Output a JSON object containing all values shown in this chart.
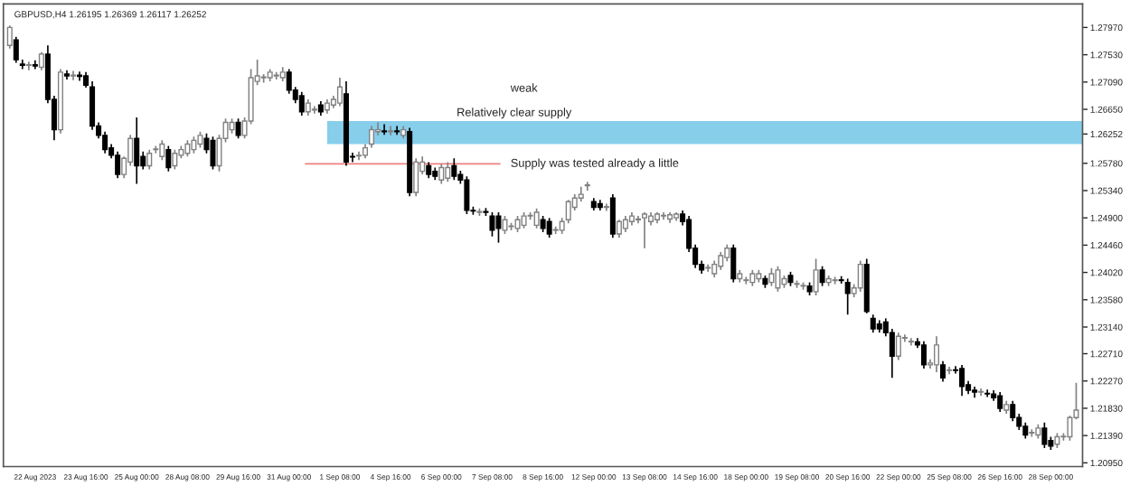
{
  "chart_data": {
    "type": "candlestick",
    "title": "GBPUSD,H4 1.26195 1.26369 1.26117 1.26252",
    "categories": [
      null,
      null,
      null,
      null,
      "22 Aug 2023",
      null,
      null,
      null,
      null,
      null,
      null,
      null,
      "23 Aug 16:00",
      null,
      null,
      null,
      null,
      null,
      null,
      null,
      "25 Aug 00:00",
      null,
      null,
      null,
      null,
      null,
      null,
      null,
      "28 Aug 08:00",
      null,
      null,
      null,
      null,
      null,
      null,
      null,
      "29 Aug 16:00",
      null,
      null,
      null,
      null,
      null,
      null,
      null,
      "31 Aug 00:00",
      null,
      null,
      null,
      null,
      null,
      null,
      null,
      "1 Sep 08:00",
      null,
      null,
      null,
      null,
      null,
      null,
      null,
      "4 Sep 16:00",
      null,
      null,
      null,
      null,
      null,
      null,
      null,
      "6 Sep 00:00",
      null,
      null,
      null,
      null,
      null,
      null,
      null,
      "7 Sep 08:00",
      null,
      null,
      null,
      null,
      null,
      null,
      null,
      "8 Sep 16:00",
      null,
      null,
      null,
      null,
      null,
      null,
      null,
      "12 Sep 00:00",
      null,
      null,
      null,
      null,
      null,
      null,
      null,
      "13 Sep 08:00",
      null,
      null,
      null,
      null,
      null,
      null,
      null,
      "14 Sep 16:00",
      null,
      null,
      null,
      null,
      null,
      null,
      null,
      "18 Sep 00:00",
      null,
      null,
      null,
      null,
      null,
      null,
      null,
      "19 Sep 08:00",
      null,
      null,
      null,
      null,
      null,
      null,
      null,
      "20 Sep 16:00",
      null,
      null,
      null,
      null,
      null,
      null,
      null,
      "22 Sep 00:00",
      null,
      null,
      null,
      null,
      null,
      null,
      null,
      "25 Sep 08:00",
      null,
      null,
      null,
      null,
      null,
      null,
      null,
      "26 Sep 16:00",
      null,
      null,
      null,
      null,
      null,
      null,
      null,
      "28 Sep 00:00",
      null,
      null,
      null,
      null
    ],
    "ohlc": [
      [
        1.2768,
        1.28,
        1.2763,
        1.2797
      ],
      [
        1.2777,
        1.2782,
        1.274,
        1.2745
      ],
      [
        1.2738,
        1.2745,
        1.273,
        1.2736
      ],
      [
        1.2736,
        1.2742,
        1.2728,
        1.2737
      ],
      [
        1.2737,
        1.2744,
        1.273,
        1.2735
      ],
      [
        1.2733,
        1.2757,
        1.2728,
        1.2754
      ],
      [
        1.2754,
        1.2768,
        1.2675,
        1.2681
      ],
      [
        1.2681,
        1.2687,
        1.2615,
        1.2632
      ],
      [
        1.2632,
        1.273,
        1.2626,
        1.2725
      ],
      [
        1.2722,
        1.2728,
        1.2713,
        1.2719
      ],
      [
        1.2719,
        1.2727,
        1.2712,
        1.272
      ],
      [
        1.272,
        1.2726,
        1.2711,
        1.2718
      ],
      [
        1.2719,
        1.2725,
        1.27,
        1.2704
      ],
      [
        1.2701,
        1.271,
        1.2632,
        1.2638
      ],
      [
        1.2638,
        1.2644,
        1.2618,
        1.2623
      ],
      [
        1.2623,
        1.2629,
        1.2594,
        1.26
      ],
      [
        1.2603,
        1.2609,
        1.2586,
        1.2591
      ],
      [
        1.2591,
        1.2597,
        1.2554,
        1.256
      ],
      [
        1.256,
        1.2589,
        1.2554,
        1.2586
      ],
      [
        1.258,
        1.2624,
        1.2574,
        1.2618
      ],
      [
        1.2618,
        1.2652,
        1.2545,
        1.2574
      ],
      [
        1.2589,
        1.2597,
        1.2568,
        1.2574
      ],
      [
        1.2574,
        1.26,
        1.2568,
        1.2594
      ],
      [
        1.26,
        1.2606,
        1.2594,
        1.2601
      ],
      [
        1.2589,
        1.2615,
        1.2583,
        1.2609
      ],
      [
        1.26,
        1.2606,
        1.2565,
        1.2571
      ],
      [
        1.2574,
        1.26,
        1.2568,
        1.2594
      ],
      [
        1.2591,
        1.2606,
        1.2586,
        1.26
      ],
      [
        1.2594,
        1.2615,
        1.2589,
        1.2609
      ],
      [
        1.26,
        1.2621,
        1.2594,
        1.2615
      ],
      [
        1.2609,
        1.2629,
        1.2603,
        1.2623
      ],
      [
        1.2618,
        1.2626,
        1.2594,
        1.26
      ],
      [
        1.2615,
        1.2621,
        1.2568,
        1.2574
      ],
      [
        1.2574,
        1.2624,
        1.2565,
        1.2618
      ],
      [
        1.2618,
        1.265,
        1.2612,
        1.2644
      ],
      [
        1.2632,
        1.265,
        1.2626,
        1.2644
      ],
      [
        1.2644,
        1.265,
        1.2618,
        1.2623
      ],
      [
        1.2623,
        1.2652,
        1.2618,
        1.2646
      ],
      [
        1.2646,
        1.273,
        1.2641,
        1.2716
      ],
      [
        1.271,
        1.2745,
        1.2704,
        1.2719
      ],
      [
        1.2716,
        1.2722,
        1.2708,
        1.2717
      ],
      [
        1.2716,
        1.273,
        1.271,
        1.2725
      ],
      [
        1.2719,
        1.2725,
        1.2713,
        1.272
      ],
      [
        1.2716,
        1.2733,
        1.271,
        1.2725
      ],
      [
        1.2725,
        1.273,
        1.269,
        1.2696
      ],
      [
        1.2696,
        1.2701,
        1.2675,
        1.2681
      ],
      [
        1.2687,
        1.2693,
        1.2655,
        1.2661
      ],
      [
        1.2661,
        1.2681,
        1.2655,
        1.2675
      ],
      [
        1.2664,
        1.267,
        1.2658,
        1.2665
      ],
      [
        1.2672,
        1.2678,
        1.2655,
        1.2661
      ],
      [
        1.2664,
        1.2681,
        1.2658,
        1.2675
      ],
      [
        1.2672,
        1.2687,
        1.2667,
        1.2681
      ],
      [
        1.2675,
        1.2716,
        1.267,
        1.2701
      ],
      [
        1.269,
        1.271,
        1.2574,
        1.258
      ],
      [
        1.2589,
        1.2595,
        1.258,
        1.2588
      ],
      [
        1.259,
        1.2597,
        1.2583,
        1.2591
      ],
      [
        1.2591,
        1.2609,
        1.2586,
        1.2603
      ],
      [
        1.2609,
        1.2638,
        1.2603,
        1.2632
      ],
      [
        1.2629,
        1.2644,
        1.2623,
        1.2632
      ],
      [
        1.263,
        1.2641,
        1.2624,
        1.2629
      ],
      [
        1.2629,
        1.2638,
        1.2623,
        1.263
      ],
      [
        1.263,
        1.2638,
        1.2624,
        1.2629
      ],
      [
        1.2623,
        1.2638,
        1.2618,
        1.2632
      ],
      [
        1.2629,
        1.2635,
        1.2525,
        1.2531
      ],
      [
        1.2531,
        1.2586,
        1.2525,
        1.258
      ],
      [
        1.2565,
        1.2589,
        1.256,
        1.258
      ],
      [
        1.2574,
        1.258,
        1.2554,
        1.256
      ],
      [
        1.2565,
        1.2571,
        1.2551,
        1.2557
      ],
      [
        1.2551,
        1.2577,
        1.2545,
        1.2571
      ],
      [
        1.2554,
        1.258,
        1.2548,
        1.2571
      ],
      [
        1.2574,
        1.2586,
        1.2551,
        1.2557
      ],
      [
        1.256,
        1.2566,
        1.2545,
        1.2551
      ],
      [
        1.2551,
        1.2557,
        1.2496,
        1.2502
      ],
      [
        1.2502,
        1.2508,
        1.2495,
        1.2501
      ],
      [
        1.2499,
        1.2505,
        1.2493,
        1.25
      ],
      [
        1.25,
        1.2506,
        1.2493,
        1.2499
      ],
      [
        1.2493,
        1.2499,
        1.246,
        1.247
      ],
      [
        1.2493,
        1.2499,
        1.245,
        1.2473
      ],
      [
        1.247,
        1.2493,
        1.2464,
        1.2487
      ],
      [
        1.2476,
        1.2482,
        1.247,
        1.2477
      ],
      [
        1.2473,
        1.2493,
        1.2467,
        1.2487
      ],
      [
        1.2478,
        1.2499,
        1.2473,
        1.2493
      ],
      [
        1.2493,
        1.2499,
        1.2487,
        1.2494
      ],
      [
        1.2478,
        1.2505,
        1.2473,
        1.2499
      ],
      [
        1.2487,
        1.2493,
        1.2467,
        1.2473
      ],
      [
        1.2484,
        1.249,
        1.2458,
        1.2464
      ],
      [
        1.247,
        1.2476,
        1.2464,
        1.2471
      ],
      [
        1.247,
        1.249,
        1.2464,
        1.2484
      ],
      [
        1.2487,
        1.2519,
        1.2481,
        1.2516
      ],
      [
        1.2507,
        1.2528,
        1.2502,
        1.2522
      ],
      [
        1.2522,
        1.254,
        1.2516,
        1.2528
      ],
      [
        1.2542,
        1.2548,
        1.2534,
        1.2543
      ],
      [
        1.2516,
        1.2522,
        1.2502,
        1.2507
      ],
      [
        1.2513,
        1.2519,
        1.2502,
        1.2507
      ],
      [
        1.2507,
        1.2513,
        1.2501,
        1.2508
      ],
      [
        1.2522,
        1.2528,
        1.2458,
        1.2464
      ],
      [
        1.2464,
        1.2487,
        1.2458,
        1.2484
      ],
      [
        1.2473,
        1.2493,
        1.2467,
        1.2487
      ],
      [
        1.2484,
        1.2499,
        1.2478,
        1.2493
      ],
      [
        1.2487,
        1.2493,
        1.2481,
        1.2488
      ],
      [
        1.249,
        1.2499,
        1.2441,
        1.2496
      ],
      [
        1.2484,
        1.2499,
        1.2478,
        1.2493
      ],
      [
        1.2487,
        1.2499,
        1.2481,
        1.2496
      ],
      [
        1.2493,
        1.2499,
        1.2487,
        1.2494
      ],
      [
        1.2488,
        1.2499,
        1.2482,
        1.2495
      ],
      [
        1.249,
        1.2499,
        1.2485,
        1.2496
      ],
      [
        1.2496,
        1.2502,
        1.2478,
        1.2484
      ],
      [
        1.2487,
        1.2493,
        1.2435,
        1.2441
      ],
      [
        1.2441,
        1.2447,
        1.2409,
        1.2415
      ],
      [
        1.2415,
        1.2421,
        1.24,
        1.2406
      ],
      [
        1.2409,
        1.2415,
        1.2403,
        1.241
      ],
      [
        1.24,
        1.2421,
        1.2394,
        1.2415
      ],
      [
        1.2412,
        1.2435,
        1.2406,
        1.2429
      ],
      [
        1.2426,
        1.2447,
        1.242,
        1.2441
      ],
      [
        1.2441,
        1.2447,
        1.2386,
        1.2392
      ],
      [
        1.2392,
        1.2406,
        1.2386,
        1.24
      ],
      [
        1.2389,
        1.2395,
        1.2383,
        1.239
      ],
      [
        1.2386,
        1.2406,
        1.238,
        1.24
      ],
      [
        1.2392,
        1.2406,
        1.2386,
        1.24
      ],
      [
        1.2392,
        1.2397,
        1.2377,
        1.2383
      ],
      [
        1.2386,
        1.2409,
        1.238,
        1.24
      ],
      [
        1.2377,
        1.2412,
        1.2371,
        1.2406
      ],
      [
        1.2383,
        1.2397,
        1.2377,
        1.2392
      ],
      [
        1.2397,
        1.2403,
        1.238,
        1.2386
      ],
      [
        1.2383,
        1.2389,
        1.2377,
        1.2384
      ],
      [
        1.238,
        1.2386,
        1.2374,
        1.2381
      ],
      [
        1.238,
        1.2386,
        1.2365,
        1.2371
      ],
      [
        1.2371,
        1.2424,
        1.2365,
        1.2406
      ],
      [
        1.2406,
        1.2412,
        1.238,
        1.2386
      ],
      [
        1.2386,
        1.2397,
        1.238,
        1.2392
      ],
      [
        1.2389,
        1.2395,
        1.2383,
        1.239
      ],
      [
        1.239,
        1.2396,
        1.2384,
        1.2389
      ],
      [
        1.2386,
        1.2392,
        1.2334,
        1.2368
      ],
      [
        1.2368,
        1.2383,
        1.2362,
        1.2377
      ],
      [
        1.2377,
        1.2421,
        1.2371,
        1.2415
      ],
      [
        1.2415,
        1.2424,
        1.2336,
        1.2339
      ],
      [
        1.2328,
        1.2334,
        1.2305,
        1.2311
      ],
      [
        1.2319,
        1.2325,
        1.2305,
        1.2311
      ],
      [
        1.2322,
        1.2328,
        1.2299,
        1.2305
      ],
      [
        1.2305,
        1.2311,
        1.2232,
        1.2267
      ],
      [
        1.2267,
        1.2305,
        1.2261,
        1.2299
      ],
      [
        1.2296,
        1.2302,
        1.229,
        1.2297
      ],
      [
        1.229,
        1.2296,
        1.2284,
        1.2291
      ],
      [
        1.229,
        1.2296,
        1.228,
        1.2285
      ],
      [
        1.2285,
        1.2291,
        1.2247,
        1.2253
      ],
      [
        1.2253,
        1.2262,
        1.2247,
        1.2256
      ],
      [
        1.2253,
        1.2299,
        1.2241,
        1.2285
      ],
      [
        1.2253,
        1.2259,
        1.2226,
        1.2232
      ],
      [
        1.2244,
        1.225,
        1.2238,
        1.2245
      ],
      [
        1.2245,
        1.2251,
        1.2239,
        1.2244
      ],
      [
        1.2247,
        1.2253,
        1.2203,
        1.2218
      ],
      [
        1.2221,
        1.2227,
        1.2206,
        1.2212
      ],
      [
        1.2212,
        1.2218,
        1.22,
        1.2209
      ],
      [
        1.2209,
        1.2215,
        1.2203,
        1.221
      ],
      [
        1.2207,
        1.2213,
        1.2201,
        1.2206
      ],
      [
        1.2206,
        1.2212,
        1.2195,
        1.22
      ],
      [
        1.2203,
        1.2209,
        1.2177,
        1.2183
      ],
      [
        1.218,
        1.2195,
        1.2174,
        1.2189
      ],
      [
        1.2189,
        1.2195,
        1.2162,
        1.2168
      ],
      [
        1.2168,
        1.2174,
        1.2148,
        1.2154
      ],
      [
        1.2154,
        1.216,
        1.2134,
        1.214
      ],
      [
        1.2143,
        1.2149,
        1.2137,
        1.2144
      ],
      [
        1.214,
        1.2157,
        1.2134,
        1.2151
      ],
      [
        1.2151,
        1.216,
        1.2119,
        1.2125
      ],
      [
        1.2131,
        1.2137,
        1.2116,
        1.2122
      ],
      [
        1.2125,
        1.2143,
        1.2119,
        1.2137
      ],
      [
        1.2137,
        1.2143,
        1.2131,
        1.2138
      ],
      [
        1.2137,
        1.2171,
        1.2131,
        1.2168
      ],
      [
        1.2168,
        1.2224,
        1.2165,
        1.218
      ]
    ],
    "ylim": [
      1.2089,
      1.2835
    ],
    "yticks": [
      {
        "value": 1.2797,
        "label": "1.27970"
      },
      {
        "value": 1.2753,
        "label": "1.27530"
      },
      {
        "value": 1.2709,
        "label": "1.27090"
      },
      {
        "value": 1.2665,
        "label": "1.26650"
      },
      {
        "value": 1.26252,
        "label": "1.26252"
      },
      {
        "value": 1.2578,
        "label": "1.25780"
      },
      {
        "value": 1.2534,
        "label": "1.25340"
      },
      {
        "value": 1.249,
        "label": "1.24900"
      },
      {
        "value": 1.2446,
        "label": "1.24460"
      },
      {
        "value": 1.2402,
        "label": "1.24020"
      },
      {
        "value": 1.2358,
        "label": "1.23580"
      },
      {
        "value": 1.2314,
        "label": "1.23140"
      },
      {
        "value": 1.2271,
        "label": "1.22710"
      },
      {
        "value": 1.2227,
        "label": "1.22270"
      },
      {
        "value": 1.2183,
        "label": "1.21830"
      },
      {
        "value": 1.2139,
        "label": "1.21390"
      },
      {
        "value": 1.2095,
        "label": "1.20950"
      }
    ],
    "bands": [
      {
        "axis": "y",
        "from": 1.2609,
        "to": 1.2646,
        "label": "Relatively clear supply",
        "color": "#87ceeb"
      }
    ],
    "ref_lines": [
      {
        "axis": "y",
        "value": 1.2577,
        "label": "Supply was tested already a little",
        "color": "#f08080"
      }
    ],
    "annotations": [
      "weak"
    ],
    "grid": false
  }
}
